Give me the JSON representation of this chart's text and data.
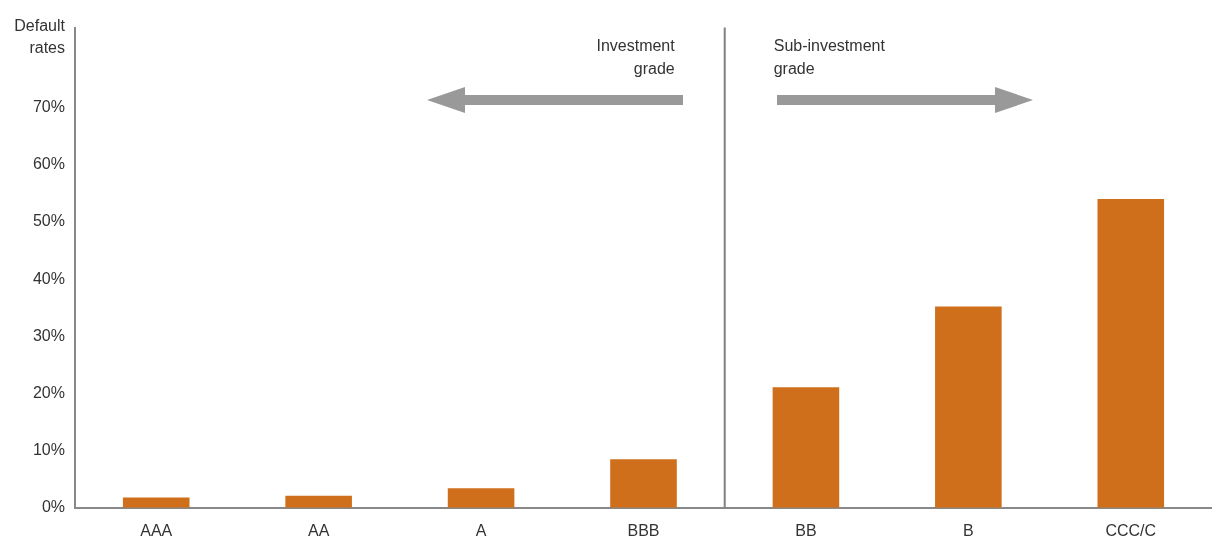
{
  "chart_data": {
    "type": "bar",
    "ylabel": "Default rates",
    "categories": [
      "AAA",
      "AA",
      "A",
      "BBB",
      "BB",
      "B",
      "CCC/C"
    ],
    "values": [
      1.8,
      2.1,
      3.4,
      8.5,
      21.1,
      35.2,
      54.0
    ],
    "color": "#cf6f1b",
    "ylim": [
      0,
      84
    ],
    "yticks": [
      {
        "value": 0,
        "label": "0%"
      },
      {
        "value": 10,
        "label": "10%"
      },
      {
        "value": 20,
        "label": "20%"
      },
      {
        "value": 30,
        "label": "30%"
      },
      {
        "value": 40,
        "label": "40%"
      },
      {
        "value": 50,
        "label": "50%"
      },
      {
        "value": 60,
        "label": "60%"
      },
      {
        "value": 70,
        "label": "70%"
      }
    ],
    "annotations": [
      "Investment grade",
      "Sub-investment grade"
    ],
    "grid": false,
    "legend": false
  }
}
